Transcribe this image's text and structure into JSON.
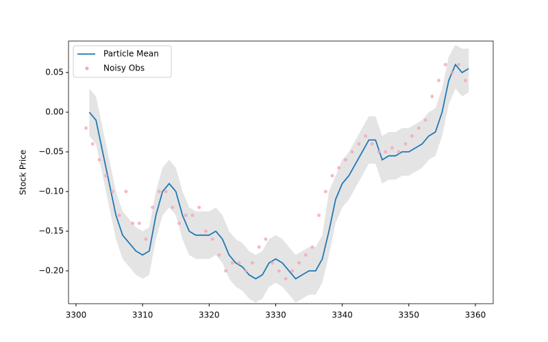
{
  "chart_data": {
    "type": "line",
    "ylabel": "Stock Price",
    "xlim": [
      3298.87,
      3362.68
    ],
    "ylim": [
      -0.2414,
      0.0897
    ],
    "xticks": [
      3300,
      3310,
      3320,
      3330,
      3340,
      3350,
      3360
    ],
    "yticks": [
      {
        "value": -0.2,
        "label": "−0.20"
      },
      {
        "value": -0.15,
        "label": "−0.15"
      },
      {
        "value": -0.1,
        "label": "−0.10"
      },
      {
        "value": -0.05,
        "label": "−0.05"
      },
      {
        "value": 0,
        "label": "0.00"
      },
      {
        "value": 0.05,
        "label": "0.05"
      }
    ],
    "legend": "upper left",
    "x": [
      3302,
      3303,
      3304,
      3305,
      3306,
      3307,
      3308,
      3309,
      3310,
      3311,
      3312,
      3313,
      3314,
      3315,
      3316,
      3317,
      3318,
      3319,
      3320,
      3321,
      3322,
      3323,
      3324,
      3325,
      3326,
      3327,
      3328,
      3329,
      3330,
      3331,
      3332,
      3333,
      3334,
      3335,
      3336,
      3337,
      3338,
      3339,
      3340,
      3341,
      3342,
      3343,
      3344,
      3345,
      3346,
      3347,
      3348,
      3349,
      3350,
      3351,
      3352,
      3353,
      3354,
      3355,
      3356,
      3357,
      3358,
      3359
    ],
    "band": {
      "color": "#bbbbbb",
      "upper": [
        0.03,
        0.02,
        -0.02,
        -0.06,
        -0.1,
        -0.125,
        -0.135,
        -0.145,
        -0.15,
        -0.145,
        -0.1,
        -0.07,
        -0.06,
        -0.07,
        -0.1,
        -0.12,
        -0.125,
        -0.125,
        -0.125,
        -0.12,
        -0.13,
        -0.15,
        -0.16,
        -0.165,
        -0.175,
        -0.18,
        -0.175,
        -0.16,
        -0.155,
        -0.16,
        -0.17,
        -0.18,
        -0.175,
        -0.17,
        -0.17,
        -0.155,
        -0.1,
        -0.08,
        -0.06,
        -0.05,
        -0.035,
        -0.02,
        -0.005,
        -0.005,
        -0.03,
        -0.025,
        -0.025,
        -0.02,
        -0.02,
        -0.015,
        -0.01,
        0.0,
        0.005,
        0.03,
        0.07,
        0.085,
        0.08,
        0.08
      ],
      "lower": [
        -0.03,
        -0.04,
        -0.08,
        -0.12,
        -0.16,
        -0.185,
        -0.195,
        -0.205,
        -0.21,
        -0.205,
        -0.16,
        -0.13,
        -0.12,
        -0.13,
        -0.16,
        -0.18,
        -0.185,
        -0.185,
        -0.185,
        -0.18,
        -0.19,
        -0.21,
        -0.22,
        -0.225,
        -0.235,
        -0.24,
        -0.235,
        -0.22,
        -0.215,
        -0.22,
        -0.23,
        -0.24,
        -0.235,
        -0.23,
        -0.23,
        -0.215,
        -0.18,
        -0.14,
        -0.12,
        -0.11,
        -0.095,
        -0.08,
        -0.065,
        -0.065,
        -0.09,
        -0.085,
        -0.085,
        -0.08,
        -0.08,
        -0.075,
        -0.07,
        -0.06,
        -0.055,
        -0.03,
        0.01,
        0.03,
        0.02,
        0.025
      ]
    },
    "series": [
      {
        "name": "Particle Mean",
        "type": "line",
        "color": "#1f77b4",
        "values": [
          0.0,
          -0.01,
          -0.05,
          -0.09,
          -0.13,
          -0.155,
          -0.165,
          -0.175,
          -0.18,
          -0.175,
          -0.13,
          -0.1,
          -0.09,
          -0.1,
          -0.13,
          -0.15,
          -0.155,
          -0.155,
          -0.155,
          -0.15,
          -0.16,
          -0.18,
          -0.19,
          -0.195,
          -0.205,
          -0.21,
          -0.205,
          -0.19,
          -0.185,
          -0.19,
          -0.2,
          -0.21,
          -0.205,
          -0.2,
          -0.2,
          -0.185,
          -0.15,
          -0.11,
          -0.09,
          -0.08,
          -0.065,
          -0.05,
          -0.035,
          -0.035,
          -0.06,
          -0.055,
          -0.055,
          -0.05,
          -0.05,
          -0.045,
          -0.04,
          -0.03,
          -0.025,
          0.0,
          0.04,
          0.06,
          0.05,
          0.055
        ]
      },
      {
        "name": "Noisy Obs",
        "type": "scatter",
        "color": "#f4a6b8",
        "x": [
          3301.5,
          3302.5,
          3303.5,
          3304.5,
          3305.5,
          3306.5,
          3307.5,
          3308.5,
          3309.5,
          3310.5,
          3311.5,
          3312.5,
          3313.5,
          3314.5,
          3315.5,
          3316.5,
          3317.5,
          3318.5,
          3319.5,
          3320.5,
          3321.5,
          3322.5,
          3323.5,
          3324.5,
          3325.5,
          3326.5,
          3327.5,
          3328.5,
          3329.5,
          3330.5,
          3331.5,
          3332.5,
          3333.5,
          3334.5,
          3335.5,
          3336.5,
          3337.5,
          3338.5,
          3339.5,
          3340.5,
          3341.5,
          3342.5,
          3343.5,
          3344.5,
          3345.5,
          3346.5,
          3347.5,
          3348.5,
          3349.5,
          3350.5,
          3351.5,
          3352.5,
          3353.5,
          3354.5,
          3355.5,
          3356.5,
          3357.5,
          3358.5
        ],
        "values": [
          -0.02,
          -0.04,
          -0.06,
          -0.08,
          -0.1,
          -0.13,
          -0.1,
          -0.14,
          -0.14,
          -0.16,
          -0.12,
          -0.1,
          -0.1,
          -0.12,
          -0.14,
          -0.13,
          -0.13,
          -0.12,
          -0.15,
          -0.16,
          -0.18,
          -0.2,
          -0.19,
          -0.19,
          -0.2,
          -0.19,
          -0.17,
          -0.16,
          -0.19,
          -0.2,
          -0.21,
          -0.2,
          -0.19,
          -0.18,
          -0.17,
          -0.13,
          -0.1,
          -0.08,
          -0.07,
          -0.06,
          -0.05,
          -0.04,
          -0.03,
          -0.04,
          -0.05,
          -0.05,
          -0.045,
          -0.05,
          -0.04,
          -0.03,
          -0.02,
          -0.01,
          0.02,
          0.04,
          0.06,
          0.05,
          0.06,
          0.04
        ]
      }
    ]
  }
}
